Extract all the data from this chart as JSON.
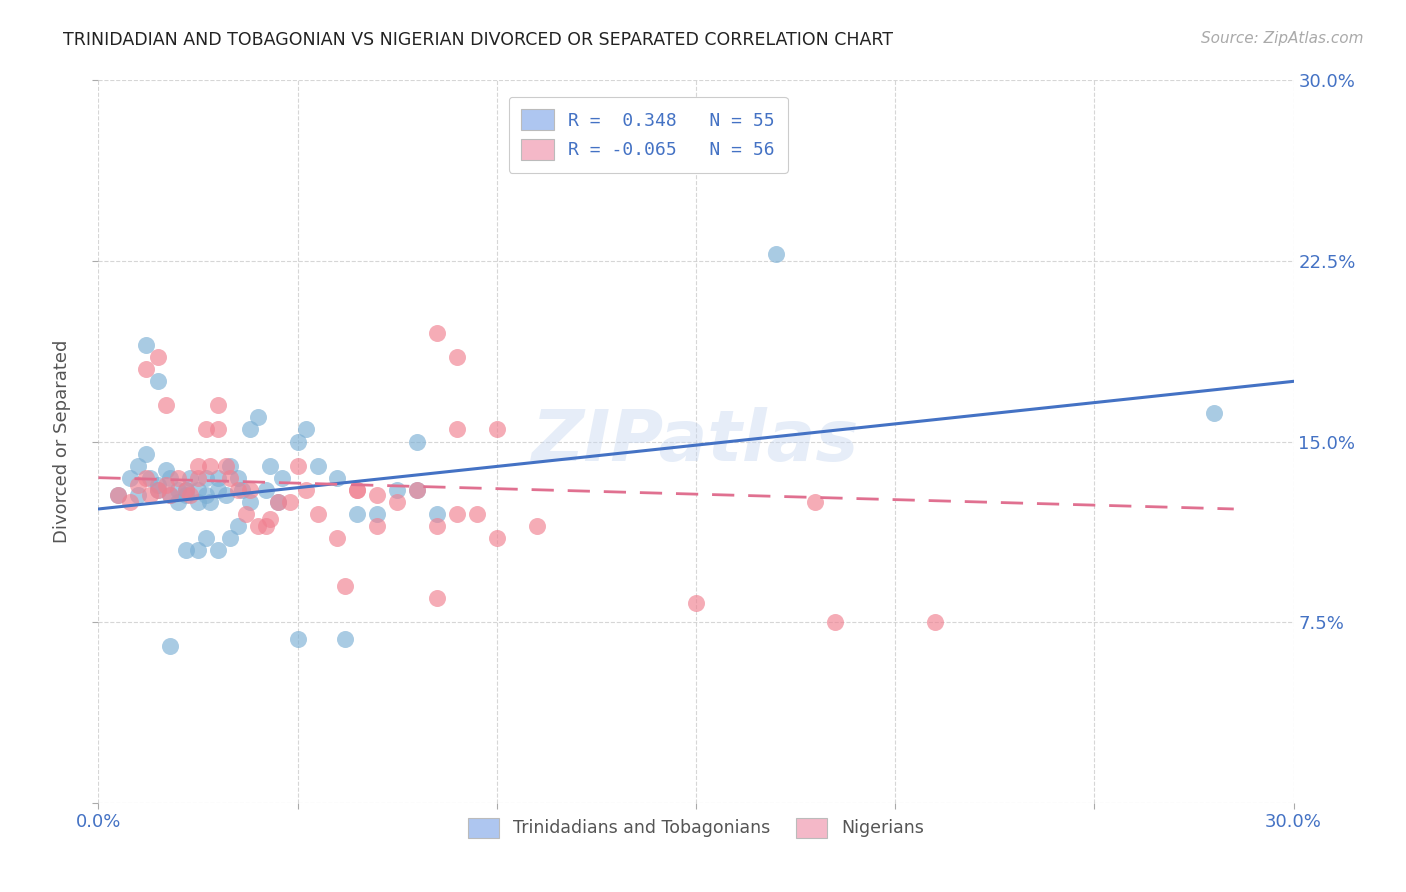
{
  "title": "TRINIDADIAN AND TOBAGONIAN VS NIGERIAN DIVORCED OR SEPARATED CORRELATION CHART",
  "source": "Source: ZipAtlas.com",
  "ylabel": "Divorced or Separated",
  "x_ticks": [
    0.0,
    0.05,
    0.1,
    0.15,
    0.2,
    0.25,
    0.3
  ],
  "y_ticks": [
    0.0,
    0.075,
    0.15,
    0.225,
    0.3
  ],
  "y_ticks_right": [
    0.075,
    0.15,
    0.225,
    0.3
  ],
  "xlim": [
    0.0,
    0.3
  ],
  "ylim": [
    0.0,
    0.3
  ],
  "watermark": "ZIPatlas",
  "blue_color": "#7bafd4",
  "pink_color": "#f08090",
  "blue_line_color": "#4472c4",
  "pink_line_color": "#e07090",
  "legend_label_blue": "Trinidadians and Tobagonians",
  "legend_label_pink": "Nigerians",
  "blue_scatter": [
    [
      0.005,
      0.128
    ],
    [
      0.008,
      0.135
    ],
    [
      0.01,
      0.14
    ],
    [
      0.01,
      0.128
    ],
    [
      0.012,
      0.145
    ],
    [
      0.013,
      0.135
    ],
    [
      0.015,
      0.132
    ],
    [
      0.015,
      0.13
    ],
    [
      0.017,
      0.138
    ],
    [
      0.018,
      0.128
    ],
    [
      0.018,
      0.135
    ],
    [
      0.02,
      0.13
    ],
    [
      0.02,
      0.125
    ],
    [
      0.022,
      0.13
    ],
    [
      0.022,
      0.128
    ],
    [
      0.023,
      0.135
    ],
    [
      0.025,
      0.125
    ],
    [
      0.025,
      0.13
    ],
    [
      0.027,
      0.128
    ],
    [
      0.027,
      0.135
    ],
    [
      0.028,
      0.125
    ],
    [
      0.03,
      0.135
    ],
    [
      0.03,
      0.13
    ],
    [
      0.032,
      0.128
    ],
    [
      0.033,
      0.14
    ],
    [
      0.035,
      0.135
    ],
    [
      0.036,
      0.13
    ],
    [
      0.038,
      0.125
    ],
    [
      0.038,
      0.155
    ],
    [
      0.04,
      0.16
    ],
    [
      0.042,
      0.13
    ],
    [
      0.043,
      0.14
    ],
    [
      0.045,
      0.125
    ],
    [
      0.046,
      0.135
    ],
    [
      0.05,
      0.15
    ],
    [
      0.052,
      0.155
    ],
    [
      0.055,
      0.14
    ],
    [
      0.06,
      0.135
    ],
    [
      0.065,
      0.12
    ],
    [
      0.07,
      0.12
    ],
    [
      0.075,
      0.13
    ],
    [
      0.08,
      0.15
    ],
    [
      0.08,
      0.13
    ],
    [
      0.085,
      0.12
    ],
    [
      0.012,
      0.19
    ],
    [
      0.015,
      0.175
    ],
    [
      0.022,
      0.105
    ],
    [
      0.025,
      0.105
    ],
    [
      0.027,
      0.11
    ],
    [
      0.03,
      0.105
    ],
    [
      0.033,
      0.11
    ],
    [
      0.035,
      0.115
    ],
    [
      0.018,
      0.065
    ],
    [
      0.05,
      0.068
    ],
    [
      0.062,
      0.068
    ],
    [
      0.17,
      0.228
    ],
    [
      0.28,
      0.162
    ]
  ],
  "pink_scatter": [
    [
      0.005,
      0.128
    ],
    [
      0.008,
      0.125
    ],
    [
      0.01,
      0.132
    ],
    [
      0.012,
      0.135
    ],
    [
      0.013,
      0.128
    ],
    [
      0.015,
      0.13
    ],
    [
      0.017,
      0.132
    ],
    [
      0.018,
      0.128
    ],
    [
      0.02,
      0.135
    ],
    [
      0.022,
      0.13
    ],
    [
      0.023,
      0.128
    ],
    [
      0.025,
      0.135
    ],
    [
      0.025,
      0.14
    ],
    [
      0.027,
      0.155
    ],
    [
      0.028,
      0.14
    ],
    [
      0.03,
      0.155
    ],
    [
      0.03,
      0.165
    ],
    [
      0.032,
      0.14
    ],
    [
      0.033,
      0.135
    ],
    [
      0.035,
      0.13
    ],
    [
      0.037,
      0.12
    ],
    [
      0.038,
      0.13
    ],
    [
      0.04,
      0.115
    ],
    [
      0.042,
      0.115
    ],
    [
      0.043,
      0.118
    ],
    [
      0.045,
      0.125
    ],
    [
      0.048,
      0.125
    ],
    [
      0.05,
      0.14
    ],
    [
      0.052,
      0.13
    ],
    [
      0.055,
      0.12
    ],
    [
      0.06,
      0.11
    ],
    [
      0.065,
      0.13
    ],
    [
      0.07,
      0.115
    ],
    [
      0.075,
      0.125
    ],
    [
      0.08,
      0.13
    ],
    [
      0.012,
      0.18
    ],
    [
      0.015,
      0.185
    ],
    [
      0.017,
      0.165
    ],
    [
      0.085,
      0.195
    ],
    [
      0.09,
      0.185
    ],
    [
      0.12,
      0.275
    ],
    [
      0.09,
      0.155
    ],
    [
      0.1,
      0.155
    ],
    [
      0.095,
      0.12
    ],
    [
      0.1,
      0.11
    ],
    [
      0.11,
      0.115
    ],
    [
      0.18,
      0.125
    ],
    [
      0.062,
      0.09
    ],
    [
      0.085,
      0.085
    ],
    [
      0.15,
      0.083
    ],
    [
      0.185,
      0.075
    ],
    [
      0.21,
      0.075
    ],
    [
      0.085,
      0.115
    ],
    [
      0.09,
      0.12
    ],
    [
      0.065,
      0.13
    ],
    [
      0.07,
      0.128
    ]
  ],
  "blue_line": {
    "x": [
      0.0,
      0.3
    ],
    "y": [
      0.122,
      0.175
    ]
  },
  "pink_line": {
    "x": [
      0.0,
      0.285
    ],
    "y": [
      0.135,
      0.122
    ]
  }
}
